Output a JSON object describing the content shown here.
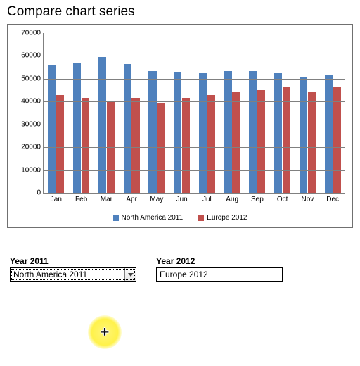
{
  "title": "Compare chart series",
  "chart": {
    "type": "bar",
    "categories": [
      "Jan",
      "Feb",
      "Mar",
      "Apr",
      "May",
      "Jun",
      "Jul",
      "Aug",
      "Sep",
      "Oct",
      "Nov",
      "Dec"
    ],
    "series": [
      {
        "name": "North America 2011",
        "color": "#4f81bd",
        "values": [
          56000,
          57000,
          59500,
          56500,
          53500,
          53000,
          52500,
          53500,
          53500,
          52500,
          50500,
          51500
        ]
      },
      {
        "name": "Europe 2012",
        "color": "#c0504d",
        "values": [
          43000,
          41500,
          40000,
          41500,
          39500,
          41500,
          43000,
          44500,
          45000,
          46500,
          44500,
          46500
        ]
      }
    ],
    "ylim": [
      0,
      70000
    ],
    "ytick_step": 10000,
    "grid_color": "#808080",
    "background_color": "#ffffff",
    "label_fontsize": 10,
    "bar_group_width": 0.64,
    "bar_gap": 0.02
  },
  "controls": {
    "left": {
      "label": "Year 2011",
      "value": "North America 2011",
      "has_dropdown": true
    },
    "right": {
      "label": "Year 2012",
      "value": "Europe 2012",
      "has_dropdown": false
    }
  },
  "cursor": {
    "glyph": "✛"
  }
}
